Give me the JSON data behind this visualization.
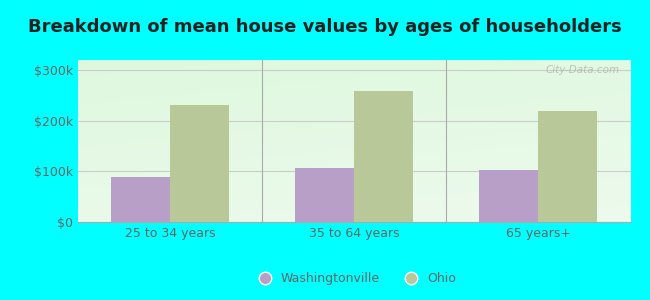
{
  "title": "Breakdown of mean house values by ages of householders",
  "categories": [
    "25 to 34 years",
    "35 to 64 years",
    "65 years+"
  ],
  "washingtonville_values": [
    88000,
    107000,
    102000
  ],
  "ohio_values": [
    232000,
    258000,
    220000
  ],
  "ylim": [
    0,
    320000
  ],
  "yticks": [
    0,
    100000,
    200000,
    300000
  ],
  "ytick_labels": [
    "$0",
    "$100k",
    "$200k",
    "$300k"
  ],
  "bar_color_wash": "#b89fc8",
  "bar_color_ohio": "#b8c898",
  "background_color": "#00ffff",
  "legend_wash": "Washingtonville",
  "legend_ohio": "Ohio",
  "title_fontsize": 13,
  "tick_fontsize": 9,
  "legend_fontsize": 9,
  "bar_width": 0.32,
  "watermark": "City-Data.com",
  "title_color": "#222222",
  "tick_color": "#666666",
  "grid_color": "#cccccc"
}
